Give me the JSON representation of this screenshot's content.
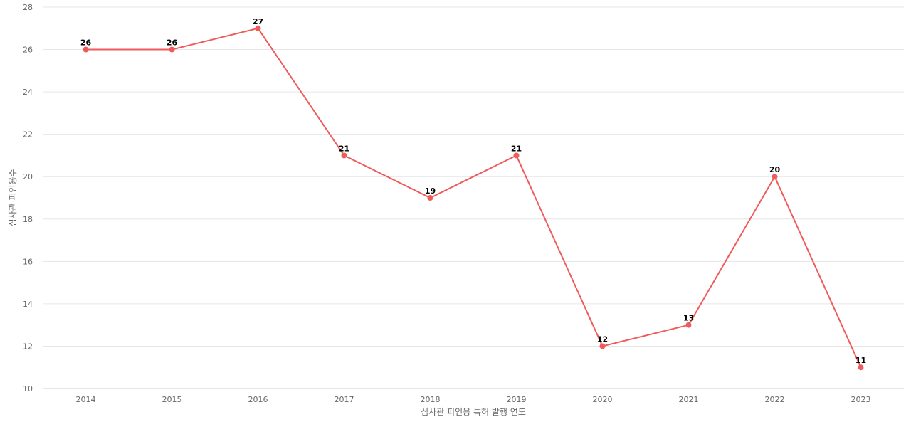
{
  "chart_data": {
    "type": "line",
    "title": "",
    "xlabel": "심사관 피인용 특허 발행 연도",
    "ylabel": "심사관 피인용수",
    "categories": [
      "2014",
      "2015",
      "2016",
      "2017",
      "2018",
      "2019",
      "2020",
      "2021",
      "2022",
      "2023"
    ],
    "series": [
      {
        "values": [
          26,
          26,
          27,
          21,
          19,
          21,
          12,
          13,
          20,
          11
        ],
        "color": "#ef5b5b"
      }
    ],
    "ylim": [
      10,
      28
    ],
    "yticks": [
      10,
      12,
      14,
      16,
      18,
      20,
      22,
      24,
      26,
      28
    ],
    "grid": true,
    "legend": "none",
    "data_labels": true
  }
}
